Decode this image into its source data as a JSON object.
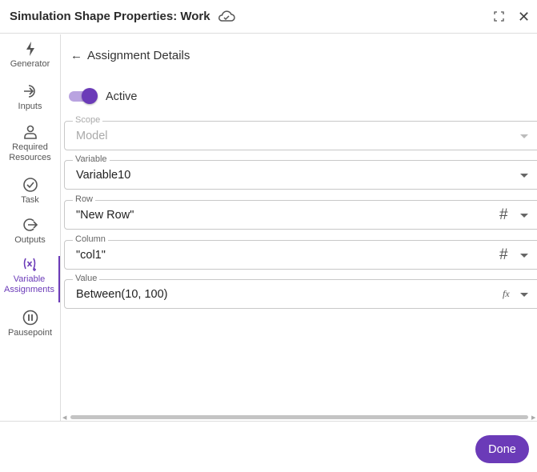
{
  "header": {
    "title": "Simulation Shape Properties: Work",
    "icons": [
      "cloud-check-icon",
      "maximize-icon",
      "close-icon"
    ]
  },
  "sidebar": {
    "items": [
      {
        "label": "Generator",
        "icon": "lightning-icon"
      },
      {
        "label": "Inputs",
        "icon": "input-arrow-icon"
      },
      {
        "label": "Required Resources",
        "icon": "person-icon"
      },
      {
        "label": "Task",
        "icon": "check-circle-icon"
      },
      {
        "label": "Outputs",
        "icon": "output-arrow-icon"
      },
      {
        "label": "Variable Assignments",
        "icon": "variable-icon",
        "active": true
      },
      {
        "label": "Pausepoint",
        "icon": "pause-circle-icon"
      }
    ]
  },
  "main": {
    "back_title": "Assignment Details",
    "active_toggle": {
      "label": "Active",
      "on": true
    },
    "fields": [
      {
        "label": "Scope",
        "value": "Model",
        "disabled": true
      },
      {
        "label": "Variable",
        "value": "Variable10"
      },
      {
        "label": "Row",
        "value": "\"New Row\"",
        "type_icon": "#"
      },
      {
        "label": "Column",
        "value": "\"col1\"",
        "type_icon": "#"
      },
      {
        "label": "Value",
        "value": "Between(10, 100)",
        "type_icon": "fx"
      }
    ]
  },
  "footer": {
    "done_label": "Done"
  },
  "colors": {
    "accent": "#6b3bb8",
    "toggle_track": "#b9a3e0"
  }
}
